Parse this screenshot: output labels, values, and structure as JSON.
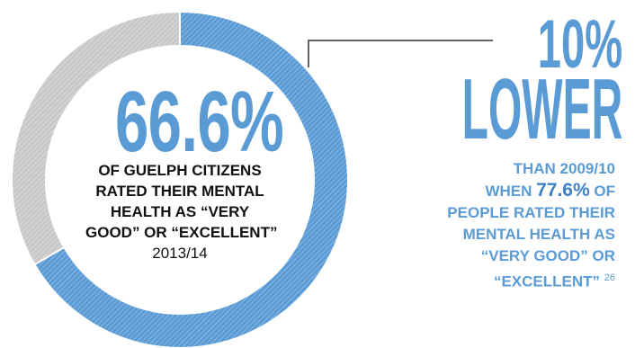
{
  "colors": {
    "accent": "#5b9bd5",
    "accent_dark": "#3f7fc7",
    "neutral": "#c8c8c8",
    "text": "#111111"
  },
  "chart_data": {
    "type": "pie",
    "donut": true,
    "pattern": "diagonal-hatch",
    "categories": [
      "Very good or excellent",
      "Other"
    ],
    "values": [
      66.6,
      33.4
    ],
    "title": "",
    "xlabel": "",
    "ylabel": ""
  },
  "center": {
    "value": "66.6%",
    "lines": [
      "of Guelph citizens",
      "rated their mental",
      "health as “very",
      "good” or “excellent”"
    ],
    "year": "2013/14"
  },
  "comparison": {
    "value": "10%",
    "word": "LOWER",
    "line1": "than 2009/10",
    "line2_pre": "when ",
    "line2_highlight": "77.6%",
    "line2_post": " of",
    "line3": "people rated their",
    "line4": "mental health as",
    "line5": "“very good” or",
    "line6": "“excellent”",
    "footnote": "26"
  }
}
